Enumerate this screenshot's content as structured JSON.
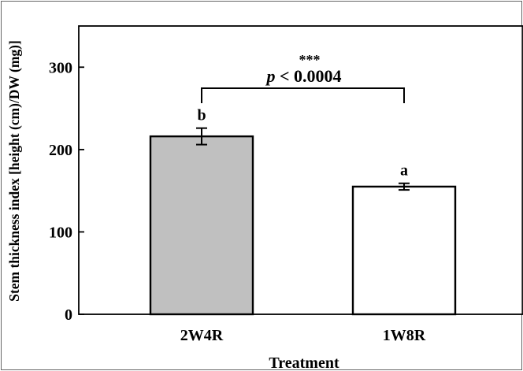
{
  "chart_data": {
    "type": "bar",
    "categories": [
      "2W4R",
      "1W8R"
    ],
    "values": [
      216,
      155
    ],
    "error_bars": [
      10,
      4
    ],
    "significance_letters": [
      "b",
      "a"
    ],
    "bar_colors": [
      "#c0c0c0",
      "#ffffff"
    ],
    "ylim": [
      0,
      350
    ],
    "yticks": [
      0,
      100,
      200,
      300
    ],
    "ylabel": "Stem thickness index [height (cm)/DW (mg)]",
    "xlabel": "Treatment",
    "annotation": {
      "stars": "***",
      "p_value_prefix": "p",
      "p_value_text": " < 0.0004"
    },
    "grid": false
  }
}
